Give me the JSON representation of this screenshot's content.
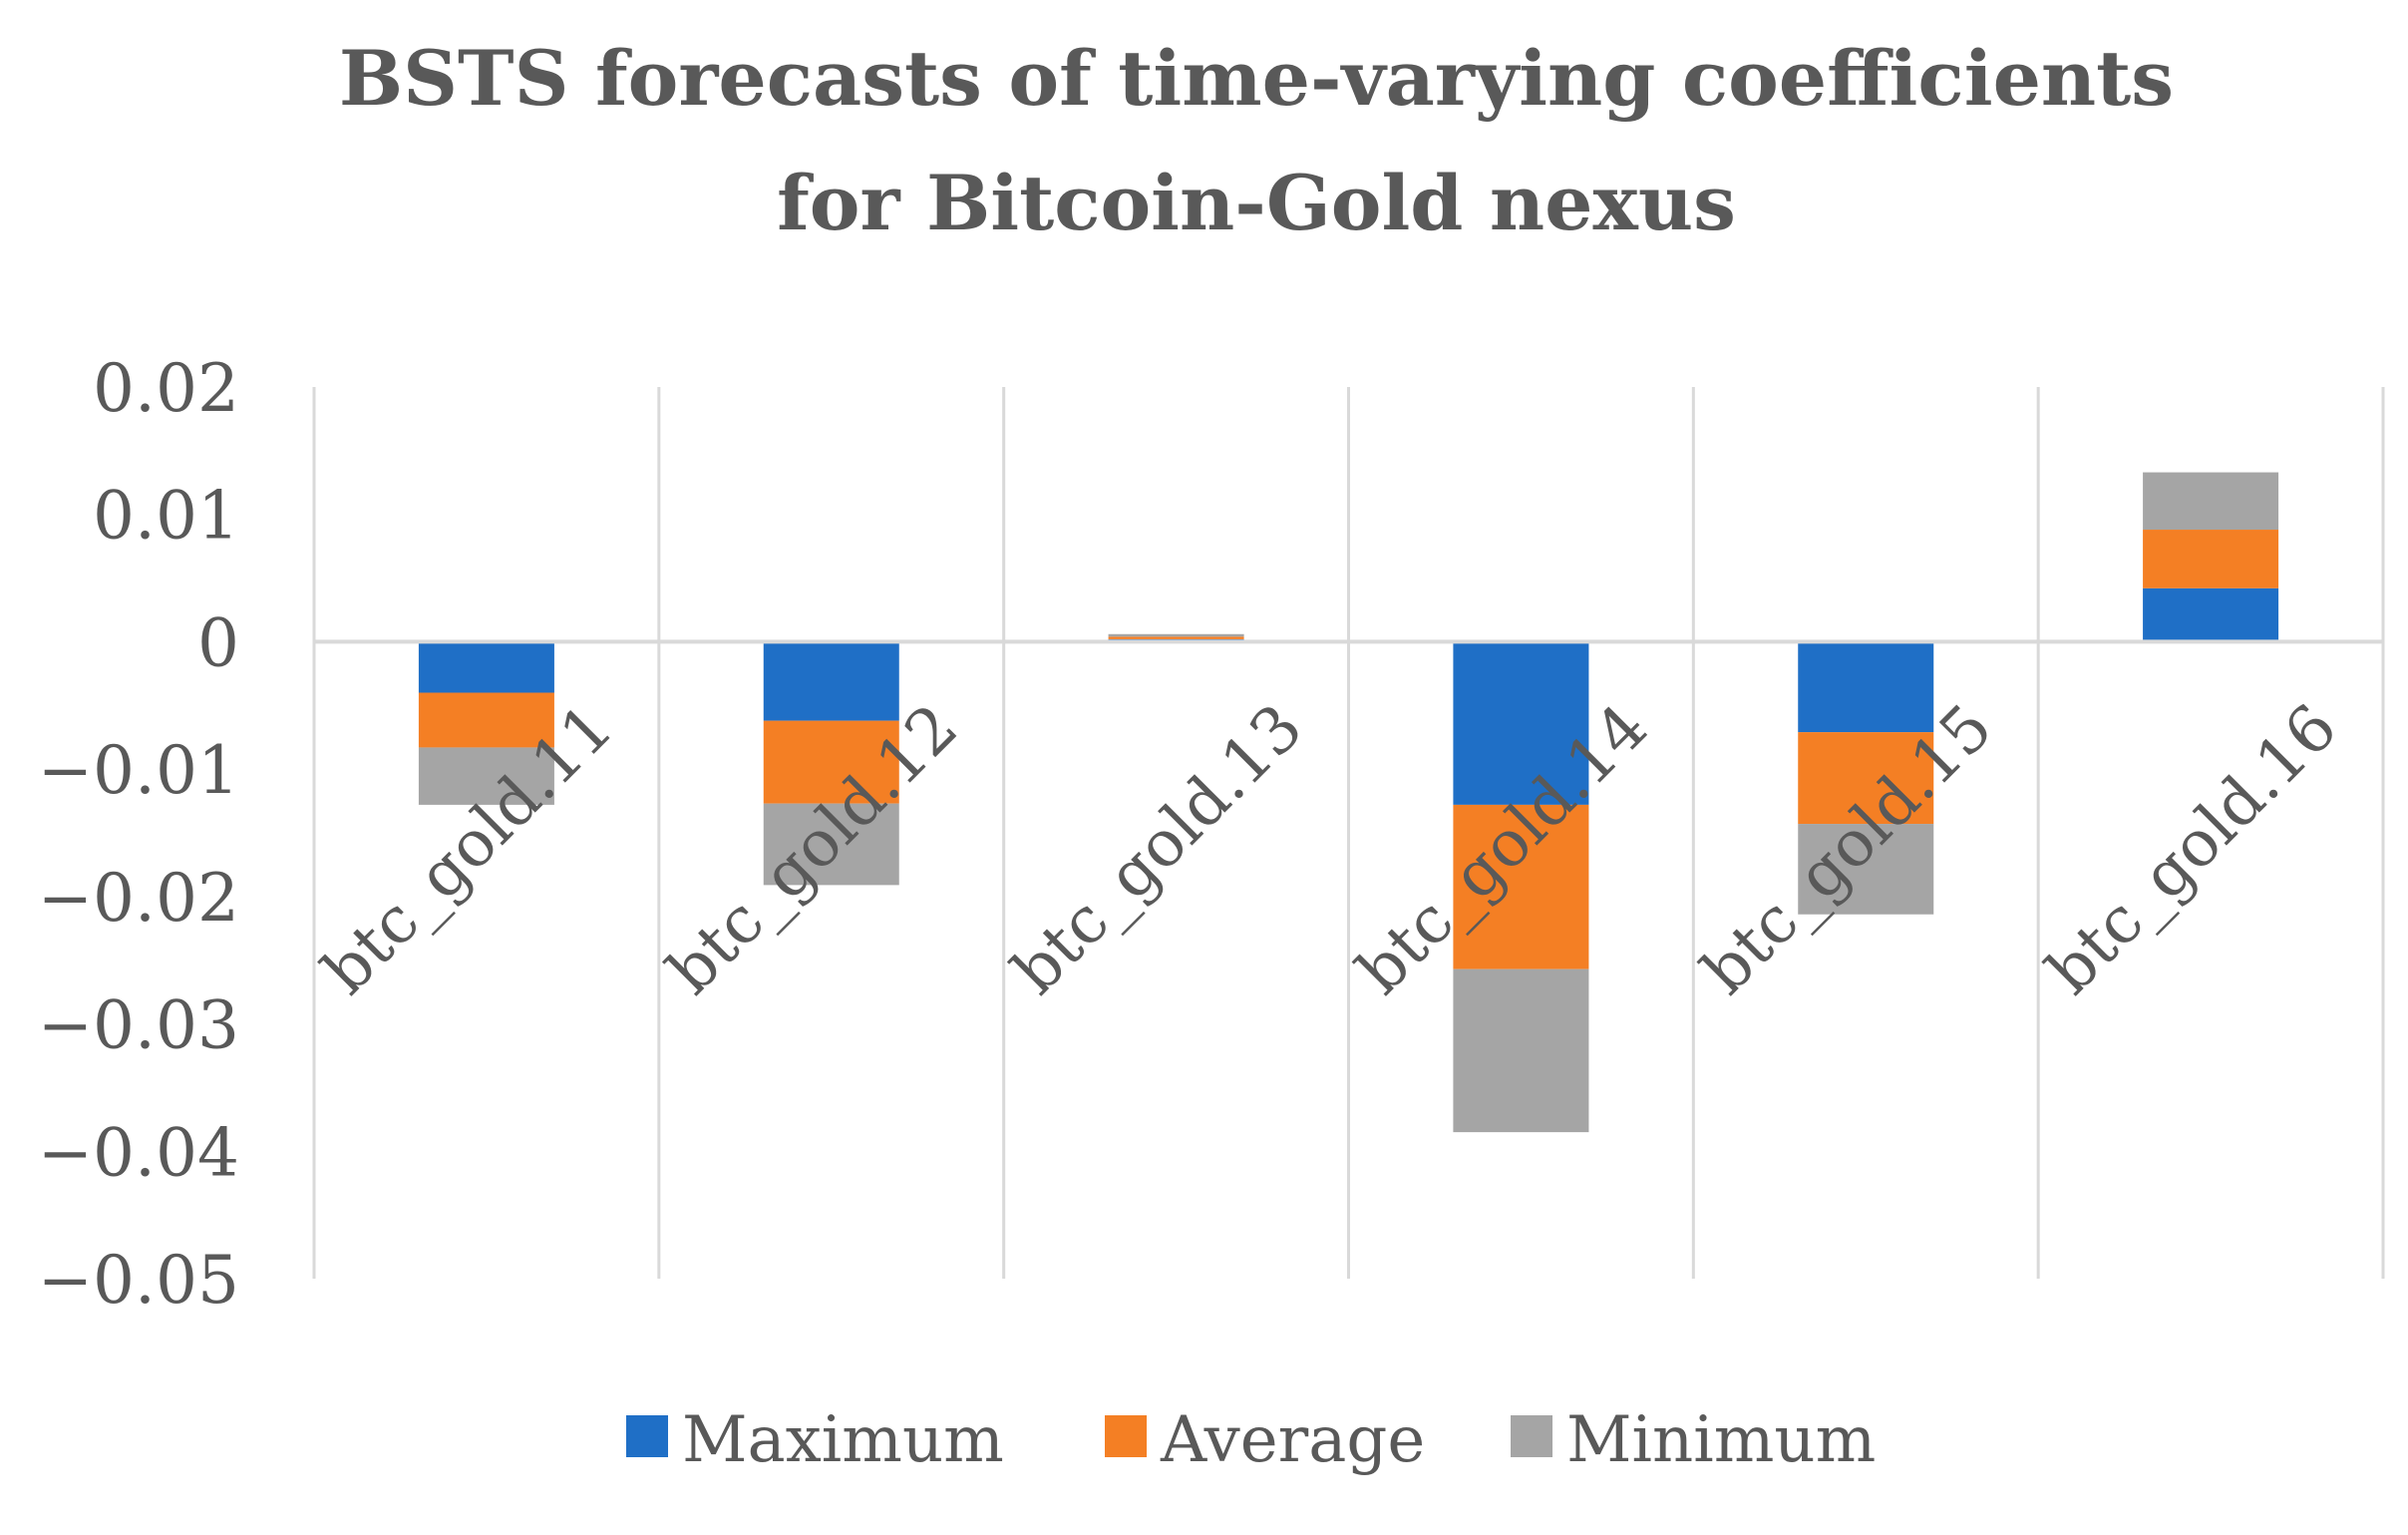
{
  "chart_data": {
    "type": "bar",
    "stacked": true,
    "title": "BSTS forecasts of time-varying coefficients for Bitcoin-Gold nexus",
    "title_lines": [
      "BSTS forecasts of time-varying coefficients",
      "for Bitcoin-Gold nexus"
    ],
    "categories": [
      "btc_gold.11",
      "btc_gold.12",
      "btc_gold.13",
      "btc_gold.14",
      "btc_gold.15",
      "btc_gold.16"
    ],
    "series": [
      {
        "name": "Maximum",
        "color": "#1F6FC6",
        "values": [
          -0.004,
          -0.0062,
          0.0002,
          -0.0128,
          -0.0071,
          0.0042
        ]
      },
      {
        "name": "Average",
        "color": "#F47F24",
        "values": [
          -0.0043,
          -0.0065,
          0.0002,
          -0.0129,
          -0.0072,
          0.0046
        ]
      },
      {
        "name": "Minimum",
        "color": "#A5A5A5",
        "values": [
          -0.0045,
          -0.0064,
          0.0002,
          -0.0128,
          -0.0071,
          0.0045
        ]
      }
    ],
    "ylim": [
      -0.05,
      0.02
    ],
    "yticks": [
      0.02,
      0.01,
      0,
      -0.01,
      -0.02,
      -0.03,
      -0.04,
      -0.05
    ],
    "ytick_labels": [
      "0.02",
      "0.01",
      "0",
      "−0.01",
      "−0.02",
      "−0.03",
      "−0.04",
      "−0.05"
    ],
    "grid": true,
    "legend_position": "bottom",
    "xlabel": "",
    "ylabel": ""
  }
}
